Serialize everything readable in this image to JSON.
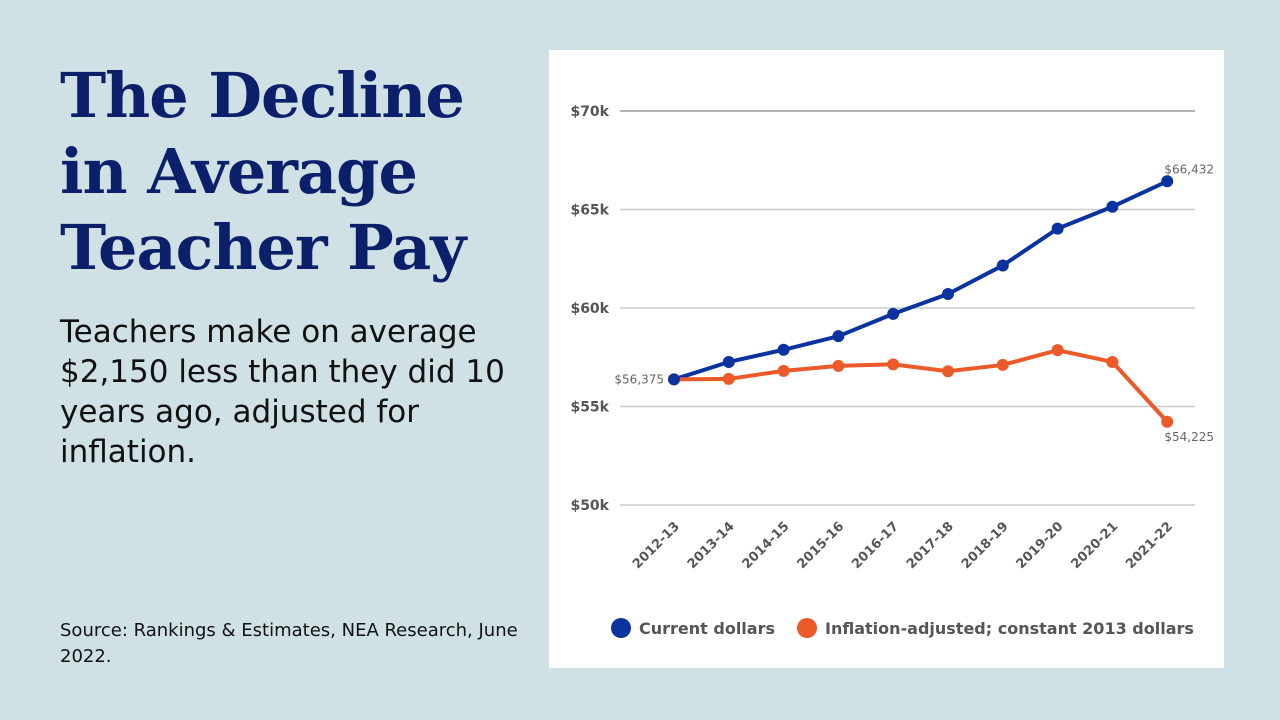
{
  "title": "The Decline in Average Teacher Pay",
  "subtitle": "Teachers make on average $2,150 less than they did 10 years ago, adjusted for inflation.",
  "source": "Source: Rankings & Estimates, NEA Research, June 2022.",
  "chart_data": {
    "type": "line",
    "title": "",
    "xlabel": "",
    "ylabel": "",
    "categories": [
      "2012-13",
      "2013-14",
      "2014-15",
      "2015-16",
      "2016-17",
      "2017-18",
      "2018-19",
      "2019-20",
      "2020-21",
      "2021-22"
    ],
    "ylim": [
      50000,
      70000
    ],
    "yticks": [
      50000,
      55000,
      60000,
      65000,
      70000
    ],
    "ytick_labels": [
      "$50k",
      "$55k",
      "$60k",
      "$65k",
      "$70k"
    ],
    "grid": true,
    "legend_position": "bottom",
    "series": [
      {
        "name": "Current dollars",
        "color": "#0a33a0",
        "values": [
          56375,
          57260,
          57880,
          58570,
          59700,
          60710,
          62160,
          64030,
          65140,
          66432
        ]
      },
      {
        "name": "Inflation-adjusted; constant 2013 dollars",
        "color": "#ec5a2a",
        "values": [
          56375,
          56400,
          56810,
          57060,
          57140,
          56790,
          57110,
          57860,
          57260,
          54225
        ]
      }
    ],
    "data_labels": [
      {
        "series": 0,
        "index": 0,
        "text": "$56,375"
      },
      {
        "series": 0,
        "index": 9,
        "text": "$66,432"
      },
      {
        "series": 1,
        "index": 9,
        "text": "$54,225"
      }
    ]
  }
}
